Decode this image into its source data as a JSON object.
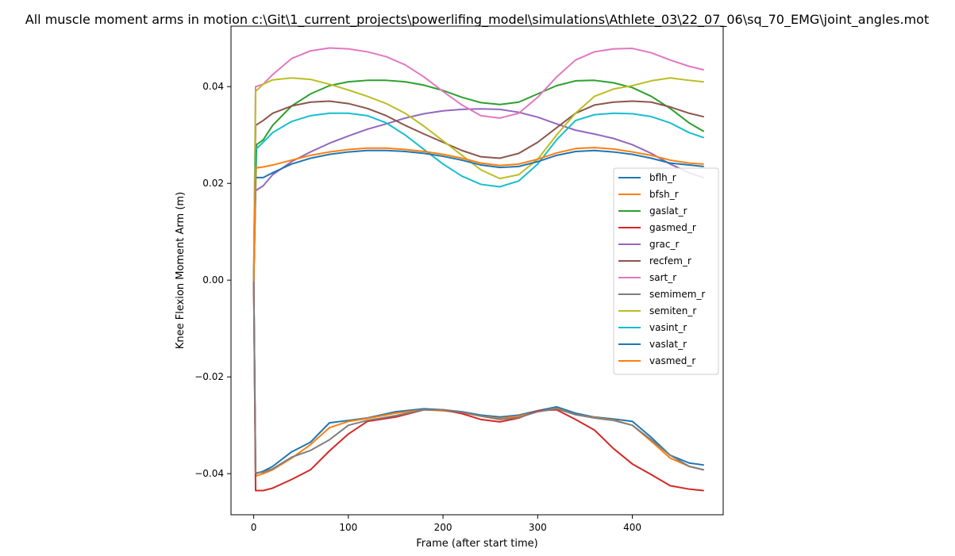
{
  "chart_data": {
    "type": "line",
    "title": "All muscle moment arms in motion c:\\Git\\1_current_projects\\powerlifing_model\\simulations\\Athlete_03\\22_07_06\\sq_70_EMG\\joint_angles.mot",
    "xlabel": "Frame (after start time)",
    "ylabel": "Knee Flexion Moment Arm (m)",
    "xlim": [
      -24,
      496
    ],
    "ylim": [
      -0.0485,
      0.0525
    ],
    "xticks": [
      0,
      100,
      200,
      300,
      400
    ],
    "xtick_labels": [
      "0",
      "100",
      "200",
      "300",
      "400"
    ],
    "yticks": [
      -0.04,
      -0.02,
      0.0,
      0.02,
      0.04
    ],
    "ytick_labels": [
      "−0.04",
      "−0.02",
      "0.00",
      "0.02",
      "0.04"
    ],
    "grid": false,
    "legend_position": "center-right",
    "series": [
      {
        "name": "bflh_r",
        "color": "#1f77b4",
        "x": [
          0,
          2,
          10,
          20,
          40,
          60,
          80,
          100,
          120,
          150,
          180,
          200,
          220,
          240,
          260,
          280,
          300,
          320,
          340,
          360,
          380,
          400,
          420,
          440,
          460,
          475
        ],
        "y": [
          0.0,
          -0.04,
          -0.0395,
          -0.0385,
          -0.0355,
          -0.0335,
          -0.0295,
          -0.029,
          -0.0285,
          -0.0272,
          -0.0266,
          -0.0268,
          -0.0272,
          -0.0279,
          -0.0283,
          -0.0279,
          -0.027,
          -0.0262,
          -0.0275,
          -0.0283,
          -0.0287,
          -0.0292,
          -0.0325,
          -0.0362,
          -0.0378,
          -0.0382
        ]
      },
      {
        "name": "bfsh_r",
        "color": "#ff7f0e",
        "x": [
          0,
          2,
          10,
          20,
          40,
          60,
          80,
          100,
          120,
          150,
          180,
          200,
          220,
          240,
          260,
          280,
          300,
          320,
          340,
          360,
          380,
          400,
          420,
          440,
          460,
          475
        ],
        "y": [
          0.0,
          -0.0405,
          -0.04,
          -0.0392,
          -0.0368,
          -0.034,
          -0.0305,
          -0.0292,
          -0.0286,
          -0.0275,
          -0.0268,
          -0.027,
          -0.0274,
          -0.0281,
          -0.0286,
          -0.0281,
          -0.0272,
          -0.0265,
          -0.0278,
          -0.0284,
          -0.0289,
          -0.03,
          -0.0333,
          -0.0368,
          -0.0385,
          -0.0392
        ]
      },
      {
        "name": "gaslat_r",
        "color": "#2ca02c",
        "x": [
          0,
          3,
          10,
          20,
          40,
          60,
          80,
          100,
          120,
          140,
          160,
          180,
          200,
          220,
          240,
          260,
          280,
          300,
          320,
          340,
          360,
          380,
          400,
          420,
          440,
          460,
          475
        ],
        "y": [
          0.0,
          0.028,
          0.029,
          0.032,
          0.036,
          0.0385,
          0.0402,
          0.041,
          0.0413,
          0.0413,
          0.041,
          0.0403,
          0.0392,
          0.0378,
          0.0367,
          0.0363,
          0.0368,
          0.0385,
          0.0402,
          0.0412,
          0.0413,
          0.0408,
          0.0398,
          0.038,
          0.0355,
          0.0325,
          0.0308
        ]
      },
      {
        "name": "gasmed_r",
        "color": "#d62728",
        "x": [
          0,
          2,
          10,
          20,
          40,
          60,
          80,
          100,
          120,
          150,
          180,
          200,
          220,
          240,
          260,
          280,
          300,
          320,
          340,
          360,
          380,
          400,
          420,
          440,
          460,
          475
        ],
        "y": [
          0.0,
          -0.0435,
          -0.0435,
          -0.043,
          -0.0412,
          -0.0392,
          -0.0353,
          -0.0318,
          -0.0292,
          -0.0283,
          -0.0268,
          -0.0268,
          -0.0276,
          -0.0288,
          -0.0293,
          -0.0285,
          -0.027,
          -0.0268,
          -0.0288,
          -0.031,
          -0.0348,
          -0.038,
          -0.0402,
          -0.0425,
          -0.0432,
          -0.0435
        ]
      },
      {
        "name": "grac_r",
        "color": "#9467bd",
        "x": [
          0,
          2,
          10,
          20,
          40,
          60,
          80,
          100,
          120,
          140,
          160,
          180,
          200,
          220,
          240,
          260,
          280,
          300,
          320,
          340,
          360,
          380,
          400,
          420,
          440,
          460,
          475
        ],
        "y": [
          0.0,
          0.0185,
          0.0195,
          0.0218,
          0.0245,
          0.0265,
          0.0283,
          0.0298,
          0.0312,
          0.0323,
          0.0335,
          0.0344,
          0.035,
          0.0353,
          0.0354,
          0.0353,
          0.0347,
          0.0337,
          0.0323,
          0.031,
          0.0302,
          0.0293,
          0.028,
          0.0262,
          0.024,
          0.0222,
          0.0212
        ]
      },
      {
        "name": "recfem_r",
        "color": "#8c564b",
        "x": [
          0,
          2,
          10,
          20,
          40,
          60,
          80,
          100,
          120,
          140,
          160,
          180,
          200,
          220,
          240,
          260,
          280,
          300,
          320,
          340,
          360,
          380,
          400,
          420,
          440,
          460,
          475
        ],
        "y": [
          0.0,
          0.032,
          0.033,
          0.0345,
          0.036,
          0.0368,
          0.037,
          0.0365,
          0.0355,
          0.034,
          0.032,
          0.0302,
          0.0285,
          0.0268,
          0.0255,
          0.0252,
          0.0262,
          0.0285,
          0.0315,
          0.0345,
          0.0362,
          0.0368,
          0.037,
          0.0368,
          0.0358,
          0.0345,
          0.0338
        ]
      },
      {
        "name": "sart_r",
        "color": "#e377c2",
        "x": [
          0,
          2,
          10,
          20,
          40,
          60,
          80,
          100,
          120,
          140,
          160,
          180,
          200,
          220,
          240,
          260,
          280,
          300,
          320,
          340,
          360,
          380,
          400,
          420,
          440,
          460,
          475
        ],
        "y": [
          0.0,
          0.04,
          0.0405,
          0.0425,
          0.0458,
          0.0474,
          0.048,
          0.0478,
          0.0472,
          0.0462,
          0.0445,
          0.042,
          0.039,
          0.0362,
          0.034,
          0.0335,
          0.0345,
          0.0378,
          0.042,
          0.0455,
          0.0472,
          0.0478,
          0.0479,
          0.047,
          0.0455,
          0.0442,
          0.0435
        ]
      },
      {
        "name": "semimem_r",
        "color": "#7f7f7f",
        "x": [
          0,
          2,
          10,
          20,
          40,
          60,
          80,
          100,
          120,
          150,
          180,
          200,
          220,
          240,
          260,
          280,
          300,
          320,
          340,
          360,
          380,
          400,
          420,
          440,
          460,
          475
        ],
        "y": [
          0.0,
          -0.0398,
          -0.0397,
          -0.039,
          -0.0366,
          -0.0352,
          -0.033,
          -0.03,
          -0.029,
          -0.028,
          -0.0268,
          -0.0268,
          -0.0273,
          -0.0281,
          -0.0288,
          -0.0284,
          -0.0272,
          -0.0266,
          -0.0278,
          -0.0285,
          -0.029,
          -0.03,
          -0.033,
          -0.0362,
          -0.0385,
          -0.0392
        ]
      },
      {
        "name": "semiten_r",
        "color": "#bcbd22",
        "x": [
          0,
          2,
          10,
          20,
          40,
          60,
          80,
          100,
          120,
          140,
          160,
          180,
          200,
          220,
          240,
          260,
          280,
          300,
          320,
          340,
          360,
          380,
          400,
          420,
          440,
          460,
          475
        ],
        "y": [
          0.0,
          0.039,
          0.0405,
          0.0414,
          0.0418,
          0.0415,
          0.0405,
          0.0393,
          0.038,
          0.0365,
          0.0345,
          0.0318,
          0.0288,
          0.0258,
          0.0228,
          0.021,
          0.0218,
          0.025,
          0.03,
          0.0345,
          0.038,
          0.0395,
          0.0402,
          0.0412,
          0.0418,
          0.0413,
          0.041
        ]
      },
      {
        "name": "vasint_r",
        "color": "#17becf",
        "x": [
          0,
          2,
          10,
          20,
          40,
          60,
          80,
          100,
          120,
          140,
          160,
          180,
          200,
          220,
          240,
          260,
          280,
          300,
          320,
          340,
          360,
          380,
          400,
          420,
          440,
          460,
          475
        ],
        "y": [
          0.0,
          0.027,
          0.0285,
          0.0305,
          0.0328,
          0.034,
          0.0345,
          0.0345,
          0.034,
          0.0325,
          0.03,
          0.027,
          0.024,
          0.0215,
          0.0198,
          0.0193,
          0.0205,
          0.024,
          0.029,
          0.033,
          0.0342,
          0.0345,
          0.0344,
          0.0338,
          0.0325,
          0.0305,
          0.0295
        ]
      },
      {
        "name": "vaslat_r",
        "color": "#1f77b4",
        "x": [
          0,
          2,
          10,
          20,
          40,
          60,
          80,
          100,
          120,
          140,
          160,
          180,
          200,
          220,
          240,
          260,
          280,
          300,
          320,
          340,
          360,
          380,
          400,
          420,
          440,
          460,
          475
        ],
        "y": [
          0.0,
          0.0212,
          0.0212,
          0.0222,
          0.024,
          0.0252,
          0.026,
          0.0265,
          0.0268,
          0.0268,
          0.0266,
          0.0262,
          0.0256,
          0.0248,
          0.0238,
          0.0233,
          0.0235,
          0.0245,
          0.0258,
          0.0266,
          0.0268,
          0.0265,
          0.026,
          0.0252,
          0.0242,
          0.0238,
          0.0235
        ]
      },
      {
        "name": "vasmed_r",
        "color": "#ff7f0e",
        "x": [
          0,
          2,
          10,
          20,
          40,
          60,
          80,
          100,
          120,
          140,
          160,
          180,
          200,
          220,
          240,
          260,
          280,
          300,
          320,
          340,
          360,
          380,
          400,
          420,
          440,
          460,
          475
        ],
        "y": [
          0.0,
          0.0232,
          0.0234,
          0.0238,
          0.0248,
          0.0258,
          0.0265,
          0.027,
          0.0273,
          0.0273,
          0.027,
          0.0266,
          0.026,
          0.0252,
          0.0242,
          0.0237,
          0.024,
          0.025,
          0.0263,
          0.0272,
          0.0274,
          0.0271,
          0.0265,
          0.0258,
          0.0248,
          0.0242,
          0.024
        ]
      }
    ]
  }
}
